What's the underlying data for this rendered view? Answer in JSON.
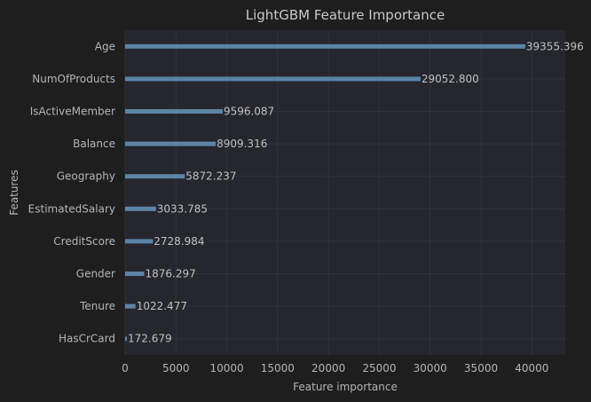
{
  "chart_data": {
    "type": "bar",
    "orientation": "horizontal",
    "title": "LightGBM Feature Importance",
    "xlabel": "Feature importance",
    "ylabel": "Features",
    "categories": [
      "Age",
      "NumOfProducts",
      "IsActiveMember",
      "Balance",
      "Geography",
      "EstimatedSalary",
      "CreditScore",
      "Gender",
      "Tenure",
      "HasCrCard"
    ],
    "values": [
      39355.396,
      29052.8,
      9596.087,
      8909.316,
      5872.237,
      3033.785,
      2728.984,
      1876.297,
      1022.477,
      172.679
    ],
    "value_labels": [
      "39355.396",
      "29052.800",
      "9596.087",
      "8909.316",
      "5872.237",
      "3033.785",
      "2728.984",
      "1876.297",
      "1022.477",
      "172.679"
    ],
    "xticks": [
      0,
      5000,
      10000,
      15000,
      20000,
      25000,
      30000,
      35000,
      40000
    ],
    "xlim": [
      0,
      43290
    ],
    "grid": true,
    "colors": {
      "figure_bg": "#1e1e1e",
      "plot_bg": "#25262e",
      "bar": "#5b84a6",
      "grid": "#31323a"
    }
  }
}
